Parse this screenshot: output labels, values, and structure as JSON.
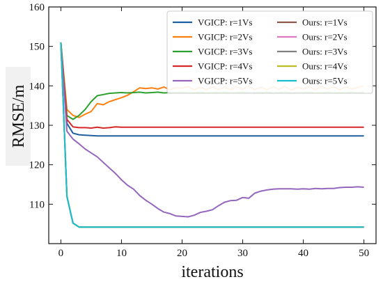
{
  "chart_data": {
    "type": "line",
    "xlabel": "iterations",
    "ylabel": "RMSE/m",
    "xlim": [
      -2,
      52
    ],
    "ylim": [
      100,
      160
    ],
    "xticks": [
      0,
      10,
      20,
      30,
      40,
      50
    ],
    "yticks": [
      110,
      120,
      130,
      140,
      150,
      160
    ],
    "grid": false,
    "legend_position": "top-right",
    "series": [
      {
        "name": "VGICP: r=1Vs",
        "color": "#1f5f9e",
        "x": [
          0,
          1,
          2,
          3,
          4,
          5,
          6,
          8,
          10,
          15,
          20,
          25,
          30,
          35,
          40,
          45,
          50
        ],
        "y": [
          151,
          130.5,
          128,
          127.6,
          127.5,
          127.4,
          127.3,
          127.3,
          127.3,
          127.3,
          127.3,
          127.3,
          127.3,
          127.3,
          127.3,
          127.3,
          127.3
        ]
      },
      {
        "name": "VGICP: r=2Vs",
        "color": "#ff7f0e",
        "x": [
          0,
          1,
          2,
          3,
          4,
          5,
          6,
          7,
          8,
          9,
          10,
          11,
          12,
          13,
          14,
          15,
          16,
          17,
          18,
          19,
          20,
          21,
          22,
          23,
          24,
          25,
          26,
          27,
          28,
          29,
          30,
          31,
          32,
          33,
          34,
          35,
          36,
          37,
          38,
          39,
          40,
          41,
          42,
          43,
          44,
          45,
          46,
          47,
          48,
          49,
          50
        ],
        "y": [
          151,
          134,
          132.5,
          132,
          132.8,
          133.5,
          135.5,
          135.2,
          136,
          136.5,
          137,
          137.6,
          138.5,
          139.5,
          139.3,
          139.5,
          139.2,
          139.7,
          139,
          139.6,
          139.4,
          139.8,
          139,
          139.7,
          139,
          139.8,
          139,
          139.7,
          139,
          139.8,
          139.1,
          139.9,
          139,
          139.7,
          139,
          139.8,
          139.1,
          139.9,
          138.9,
          139.7,
          139.2,
          139.8,
          139,
          139.8,
          139.2,
          139.8,
          139,
          139.8,
          139.2,
          139.6,
          140
        ]
      },
      {
        "name": "VGICP: r=3Vs",
        "color": "#2ca02c",
        "x": [
          0,
          1,
          2,
          3,
          4,
          5,
          6,
          7,
          8,
          9,
          10,
          11,
          12,
          13,
          14,
          15,
          16,
          17,
          18,
          19,
          20,
          21,
          22,
          23,
          24,
          25,
          26,
          27,
          28,
          29,
          30,
          31,
          32,
          33,
          34,
          35,
          36,
          37,
          38,
          39,
          40,
          41,
          42,
          43,
          44,
          45,
          46,
          47,
          48,
          49,
          50
        ],
        "y": [
          151,
          132.5,
          131.5,
          132.5,
          134,
          136,
          137.5,
          137.8,
          138.1,
          138.2,
          138.3,
          138.2,
          138.3,
          138.4,
          138.2,
          138.3,
          138.4,
          138.2,
          138.3,
          138.3,
          138.4,
          138.2,
          138.3,
          138.4,
          138.2,
          138.3,
          138.3,
          138.4,
          138.2,
          138.3,
          138.4,
          138.2,
          138.3,
          138.3,
          138.4,
          138.2,
          138.3,
          138.4,
          138.2,
          138.3,
          138.3,
          138.4,
          138.2,
          138.3,
          138.4,
          138.2,
          138.3,
          138.3,
          138.4,
          138.2,
          138.4
        ]
      },
      {
        "name": "VGICP: r=4Vs",
        "color": "#d62728",
        "x": [
          0,
          1,
          2,
          3,
          4,
          5,
          6,
          7,
          8,
          9,
          10,
          12,
          15,
          20,
          25,
          30,
          35,
          40,
          45,
          50
        ],
        "y": [
          151,
          131.5,
          129.6,
          129.4,
          129.4,
          129.3,
          129.5,
          129.3,
          129.4,
          129.6,
          129.5,
          129.5,
          129.5,
          129.5,
          129.5,
          129.5,
          129.5,
          129.5,
          129.5,
          129.5
        ]
      },
      {
        "name": "VGICP: r=5Vs",
        "color": "#9467bd",
        "x": [
          0,
          1,
          2,
          3,
          4,
          5,
          6,
          7,
          8,
          9,
          10,
          11,
          12,
          13,
          14,
          15,
          16,
          17,
          18,
          19,
          20,
          21,
          22,
          23,
          24,
          25,
          26,
          27,
          28,
          29,
          30,
          31,
          32,
          33,
          34,
          35,
          36,
          37,
          38,
          39,
          40,
          41,
          42,
          43,
          44,
          45,
          46,
          47,
          48,
          49,
          50
        ],
        "y": [
          151,
          128.5,
          126.5,
          125.3,
          124,
          123,
          122,
          120.6,
          119.2,
          117.8,
          116.2,
          114.8,
          113.8,
          112.2,
          111,
          110,
          108.9,
          108,
          107.6,
          107,
          106.9,
          106.8,
          107.2,
          107.9,
          108.2,
          108.6,
          109.6,
          110.5,
          110.9,
          111,
          111.7,
          111.5,
          112.8,
          113.3,
          113.6,
          113.8,
          113.9,
          113.9,
          113.9,
          113.8,
          113.9,
          113.8,
          114,
          113.9,
          114,
          114,
          114.2,
          114.3,
          114.3,
          114.4,
          114.3
        ]
      },
      {
        "name": "Ours: r=1Vs",
        "color": "#8c564b",
        "x": [
          0,
          1,
          2,
          3,
          5,
          10,
          20,
          30,
          40,
          50
        ],
        "y": [
          151,
          112,
          105.2,
          104.2,
          104.2,
          104.2,
          104.2,
          104.2,
          104.2,
          104.2
        ]
      },
      {
        "name": "Ours: r=2Vs",
        "color": "#e377c2",
        "x": [
          0,
          1,
          2,
          3,
          5,
          10,
          20,
          30,
          40,
          50
        ],
        "y": [
          151,
          112,
          105.2,
          104.2,
          104.2,
          104.2,
          104.2,
          104.2,
          104.2,
          104.2
        ]
      },
      {
        "name": "Ours: r=3Vs",
        "color": "#7f7f7f",
        "x": [
          0,
          1,
          2,
          3,
          5,
          10,
          20,
          30,
          40,
          50
        ],
        "y": [
          151,
          112,
          105.2,
          104.2,
          104.2,
          104.2,
          104.2,
          104.2,
          104.2,
          104.2
        ]
      },
      {
        "name": "Ours: r=4Vs",
        "color": "#bcbd22",
        "x": [
          0,
          1,
          2,
          3,
          5,
          10,
          20,
          30,
          40,
          50
        ],
        "y": [
          151,
          112,
          105.2,
          104.2,
          104.2,
          104.2,
          104.2,
          104.2,
          104.2,
          104.2
        ]
      },
      {
        "name": "Ours: r=5Vs",
        "color": "#17becf",
        "x": [
          0,
          1,
          2,
          3,
          5,
          10,
          20,
          30,
          40,
          50
        ],
        "y": [
          151,
          112,
          105.2,
          104.2,
          104.2,
          104.2,
          104.2,
          104.2,
          104.2,
          104.2
        ]
      }
    ]
  }
}
